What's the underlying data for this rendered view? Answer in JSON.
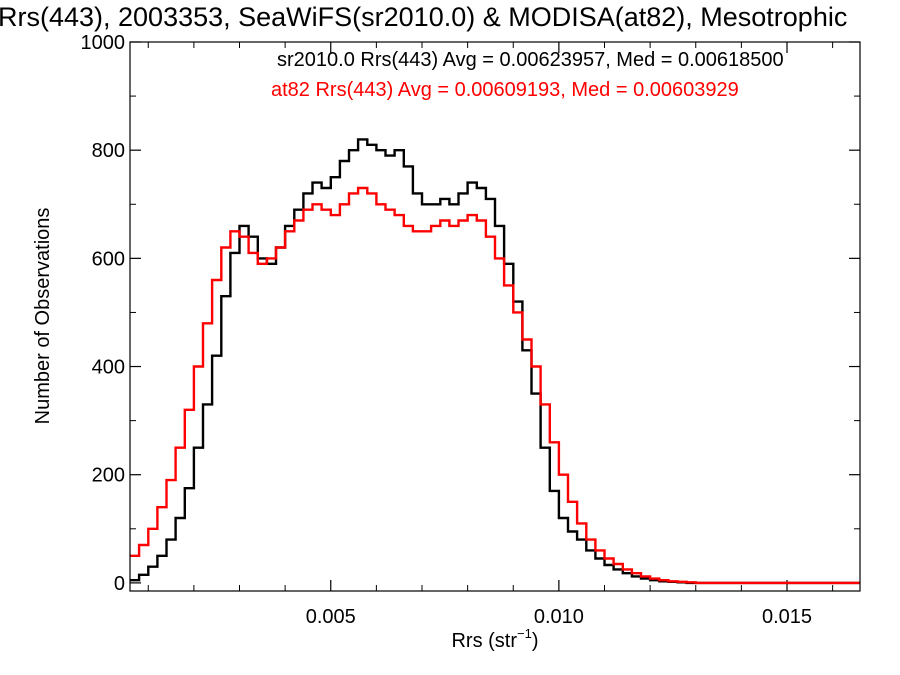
{
  "chart_data": {
    "type": "line",
    "step": true,
    "title": "Rrs(443), 2003353, SeaWiFS(sr2010.0) & MODISA(at82), Mesotrophic",
    "xlabel": "Rrs (str",
    "xlabel_sup": "−1",
    "xlabel_end": ")",
    "ylabel": "Number of Observations",
    "xlim": [
      0.0006,
      0.0166
    ],
    "ylim": [
      -15,
      1000
    ],
    "xticks": [
      0.005,
      0.01,
      0.015
    ],
    "xtick_labels": [
      "0.005",
      "0.010",
      "0.015"
    ],
    "yticks": [
      0,
      200,
      400,
      600,
      800,
      1000
    ],
    "ytick_labels": [
      "0",
      "200",
      "400",
      "600",
      "800",
      "1000"
    ],
    "grid": false,
    "series": [
      {
        "name": "sr2010.0 Rrs(443) Avg = 0.00623957, Med = 0.00618500",
        "color": "#000000",
        "x": [
          0.0006,
          0.0008,
          0.001,
          0.0012,
          0.0014,
          0.0016,
          0.0018,
          0.002,
          0.0022,
          0.0024,
          0.0026,
          0.0028,
          0.003,
          0.0032,
          0.0034,
          0.0036,
          0.0038,
          0.004,
          0.0042,
          0.0044,
          0.0046,
          0.0048,
          0.005,
          0.0052,
          0.0054,
          0.0056,
          0.0058,
          0.006,
          0.0062,
          0.0064,
          0.0066,
          0.0068,
          0.007,
          0.0072,
          0.0074,
          0.0076,
          0.0078,
          0.008,
          0.0082,
          0.0084,
          0.0086,
          0.0088,
          0.009,
          0.0092,
          0.0094,
          0.0096,
          0.0098,
          0.01,
          0.0102,
          0.0104,
          0.0106,
          0.0108,
          0.011,
          0.0112,
          0.0114,
          0.0116,
          0.0118,
          0.012,
          0.0122,
          0.0124,
          0.0126,
          0.0128,
          0.013,
          0.0132,
          0.0134,
          0.0136,
          0.0138,
          0.014,
          0.0142,
          0.0144,
          0.0146,
          0.0148,
          0.015,
          0.0152,
          0.0154,
          0.0156,
          0.0158,
          0.016,
          0.0162,
          0.0164,
          0.0166
        ],
        "values": [
          5,
          15,
          30,
          50,
          80,
          120,
          175,
          250,
          330,
          420,
          530,
          610,
          660,
          640,
          600,
          590,
          620,
          660,
          690,
          720,
          740,
          730,
          750,
          780,
          800,
          820,
          810,
          800,
          790,
          800,
          770,
          720,
          700,
          700,
          710,
          700,
          720,
          740,
          730,
          710,
          660,
          590,
          520,
          430,
          350,
          250,
          170,
          120,
          95,
          80,
          60,
          45,
          33,
          25,
          18,
          12,
          8,
          5,
          3,
          2,
          1,
          0,
          0,
          0,
          0,
          0,
          0,
          0,
          0,
          0,
          0,
          0,
          0,
          0,
          0,
          0,
          0,
          0,
          0,
          0,
          0
        ]
      },
      {
        "name": "at82 Rrs(443) Avg = 0.00609193, Med = 0.00603929",
        "color": "#ff0000",
        "x": [
          0.0006,
          0.0008,
          0.001,
          0.0012,
          0.0014,
          0.0016,
          0.0018,
          0.002,
          0.0022,
          0.0024,
          0.0026,
          0.0028,
          0.003,
          0.0032,
          0.0034,
          0.0036,
          0.0038,
          0.004,
          0.0042,
          0.0044,
          0.0046,
          0.0048,
          0.005,
          0.0052,
          0.0054,
          0.0056,
          0.0058,
          0.006,
          0.0062,
          0.0064,
          0.0066,
          0.0068,
          0.007,
          0.0072,
          0.0074,
          0.0076,
          0.0078,
          0.008,
          0.0082,
          0.0084,
          0.0086,
          0.0088,
          0.009,
          0.0092,
          0.0094,
          0.0096,
          0.0098,
          0.01,
          0.0102,
          0.0104,
          0.0106,
          0.0108,
          0.011,
          0.0112,
          0.0114,
          0.0116,
          0.0118,
          0.012,
          0.0122,
          0.0124,
          0.0126,
          0.0128,
          0.013,
          0.0132,
          0.0134,
          0.0136,
          0.0138,
          0.014,
          0.0142,
          0.0144,
          0.0146,
          0.0148,
          0.015,
          0.0152,
          0.0154,
          0.0156,
          0.0158,
          0.016,
          0.0162,
          0.0164,
          0.0166
        ],
        "values": [
          50,
          70,
          100,
          140,
          190,
          250,
          320,
          400,
          480,
          560,
          620,
          650,
          640,
          610,
          590,
          600,
          620,
          650,
          670,
          690,
          700,
          690,
          680,
          700,
          720,
          730,
          720,
          700,
          690,
          680,
          660,
          650,
          650,
          660,
          670,
          660,
          670,
          680,
          670,
          640,
          600,
          550,
          500,
          450,
          400,
          330,
          260,
          200,
          150,
          110,
          80,
          60,
          45,
          35,
          25,
          18,
          12,
          8,
          5,
          3,
          2,
          1,
          0,
          0,
          0,
          0,
          0,
          0,
          0,
          0,
          0,
          0,
          0,
          0,
          0,
          0,
          0,
          0,
          0,
          0,
          0
        ]
      }
    ],
    "legend": "top-right"
  }
}
